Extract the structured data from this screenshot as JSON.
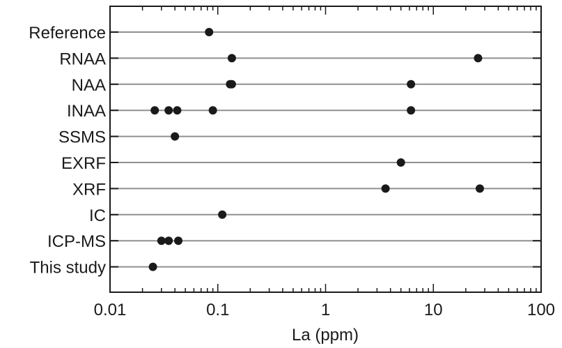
{
  "chart_data": {
    "type": "scatter",
    "xlabel": "La (ppm)",
    "xscale": "log",
    "xlim": [
      0.01,
      100
    ],
    "x_ticks": [
      "0.01",
      "0.1",
      "1",
      "10",
      "100"
    ],
    "grid": "horizontal lines at each category",
    "categories": [
      "Reference",
      "RNAA",
      "NAA",
      "INAA",
      "SSMS",
      "EXRF",
      "XRF",
      "IC",
      "ICP-MS",
      "This study"
    ],
    "series": [
      {
        "category": "Reference",
        "x": [
          0.083
        ]
      },
      {
        "category": "RNAA",
        "x": [
          0.135,
          26
        ]
      },
      {
        "category": "NAA",
        "x": [
          0.13,
          0.135,
          6.2
        ]
      },
      {
        "category": "INAA",
        "x": [
          0.026,
          0.035,
          0.042,
          0.09,
          6.2
        ]
      },
      {
        "category": "SSMS",
        "x": [
          0.04
        ]
      },
      {
        "category": "EXRF",
        "x": [
          5.0
        ]
      },
      {
        "category": "XRF",
        "x": [
          3.6,
          27
        ]
      },
      {
        "category": "IC",
        "x": [
          0.11
        ]
      },
      {
        "category": "ICP-MS",
        "x": [
          0.03,
          0.035,
          0.043
        ]
      },
      {
        "category": "This study",
        "x": [
          0.025
        ]
      }
    ],
    "colors": {
      "marker": "#1a1a1a",
      "gridline": "#909090",
      "frame": "#1a1a1a"
    }
  }
}
